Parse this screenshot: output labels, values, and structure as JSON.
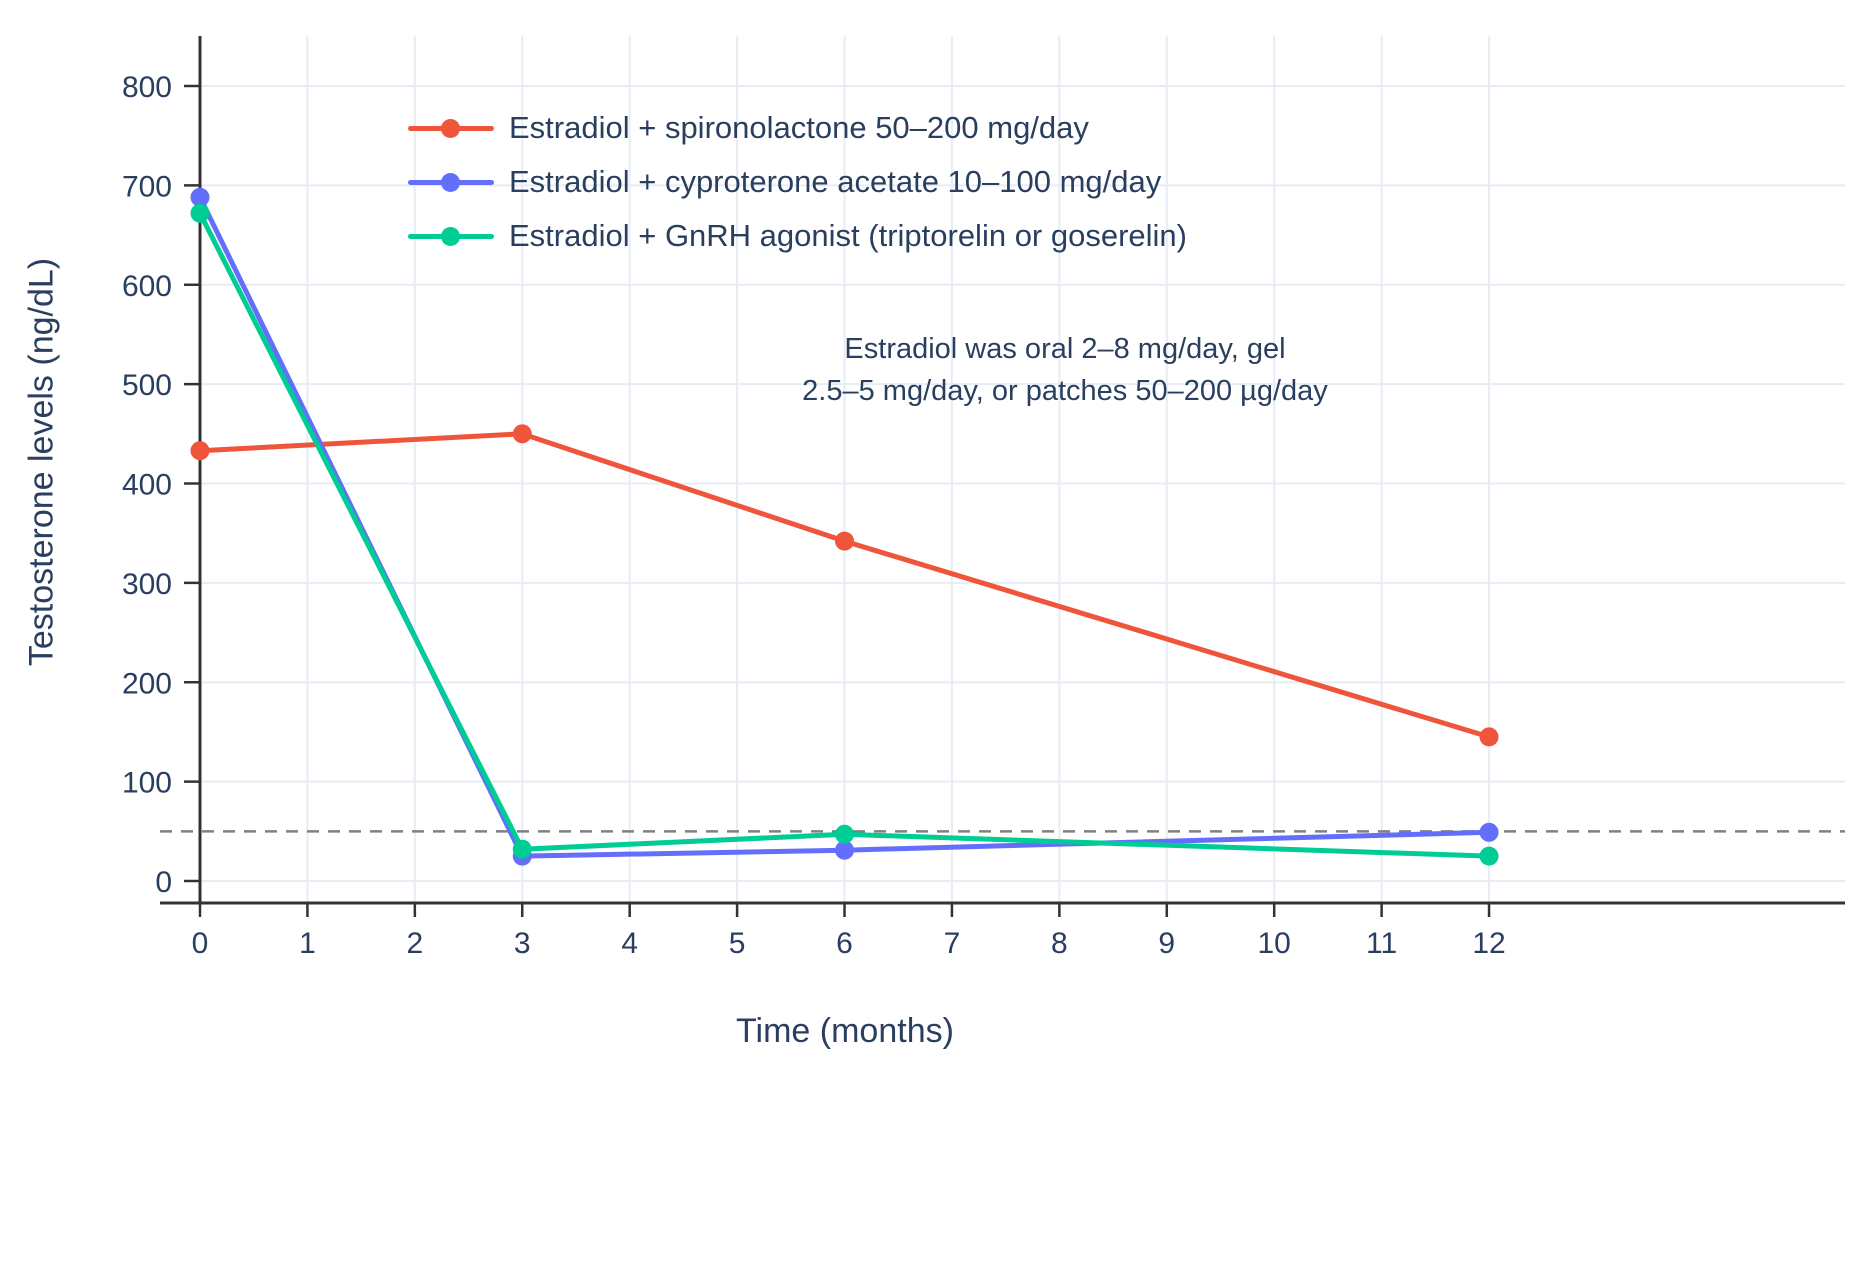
{
  "chart_data": {
    "type": "line",
    "title": "",
    "xlabel": "Time (months)",
    "ylabel": "Testosterone levels (ng/dL)",
    "x": [
      0,
      3,
      6,
      12
    ],
    "x_ticks": [
      0,
      1,
      2,
      3,
      4,
      5,
      6,
      7,
      8,
      9,
      10,
      11,
      12
    ],
    "y_ticks": [
      0,
      100,
      200,
      300,
      400,
      500,
      600,
      700,
      800
    ],
    "xlim": [
      0,
      12
    ],
    "ylim": [
      0,
      850
    ],
    "grid": true,
    "legend_position": "top-left-inside",
    "series": [
      {
        "name": "Estradiol + spironolactone 50–200 mg/day",
        "color": "#EF553B",
        "values": [
          433,
          450,
          342,
          145
        ]
      },
      {
        "name": "Estradiol + cyproterone acetate 10–100 mg/day",
        "color": "#636EFA",
        "values": [
          688,
          25,
          31,
          49
        ]
      },
      {
        "name": "Estradiol + GnRH agonist (triptorelin or goserelin)",
        "color": "#00CC96",
        "values": [
          672,
          32,
          47,
          25
        ]
      }
    ],
    "reference_line": {
      "y": 50,
      "style": "dashed",
      "color": "#808080"
    },
    "annotation": {
      "line1": "Estradiol was oral 2–8 mg/day, gel",
      "line2": "2.5–5 mg/day, or patches 50–200 µg/day"
    },
    "colors": {
      "grid": "#e7edf5",
      "axis": "#333333",
      "text": "#2a3f5f",
      "background": "#ffffff"
    }
  }
}
